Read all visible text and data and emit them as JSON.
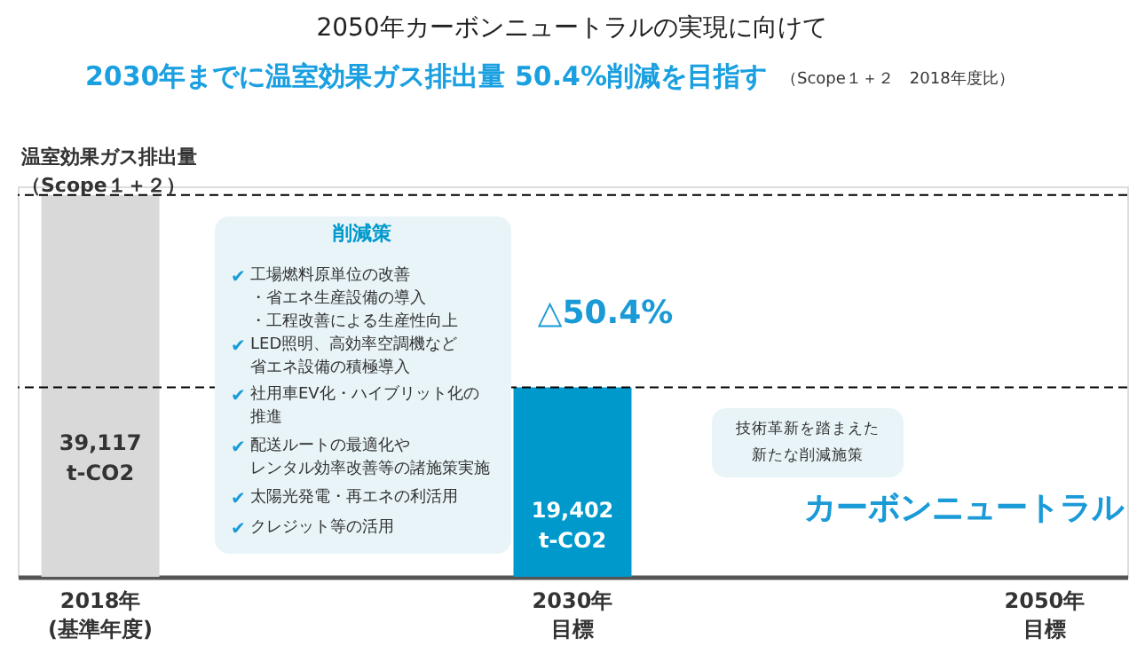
{
  "chart_data": {
    "type": "bar",
    "title": "2050年カーボンニュートラルの実現に向けて",
    "subtitle": "2030年までに温室効果ガス排出量 50.4%削減を目指す",
    "ylabel": "温室効果ガス排出量（Scope１＋２）",
    "categories": [
      "2018年(基準年度)",
      "2030年目標",
      "2050年目標"
    ],
    "values": [
      39117,
      19402,
      null
    ],
    "colors": [
      "#d9d9d9",
      "#0099cc",
      null
    ],
    "value_labels": [
      "39,117\nt-CO2",
      "19,402\nt-CO2",
      null
    ],
    "ref_lines": [
      {
        "axis": "y",
        "value": 39117,
        "line_style": "dashed",
        "color": "#000000"
      },
      {
        "axis": "y",
        "value": 19402,
        "line_style": "dashed",
        "color": "#000000"
      }
    ],
    "annotations": [
      "（Scope１＋２　2018年度比）",
      "削減策",
      "✔工場燃料原単位の改善・省エネ生産設備の導入・工程改善による生産性向上",
      "✔LED照明、高効率空調機など省エネ設備の積極導入",
      "✔社用車EV化・ハイブリット化の推進",
      "✔配送ルートの最適化やレンタル効率改善等の諸施策実施",
      "✔太陽光発電・再エネの利活用",
      "✔クレジット等の活用",
      "△50.4%",
      "技術革新を踏まえた新たな削減施策",
      "カーボンニュートラル"
    ],
    "grid": false
  }
}
